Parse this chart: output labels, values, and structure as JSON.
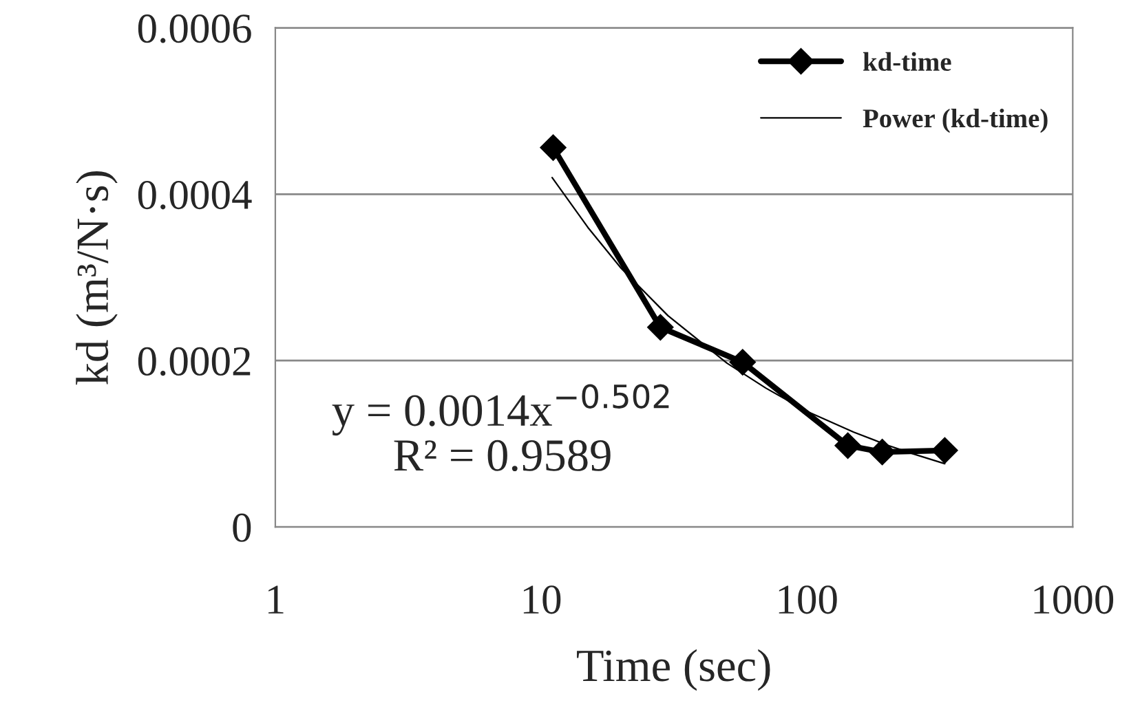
{
  "chart_data": {
    "type": "line",
    "xlabel": "Time (sec)",
    "ylabel": "kd (m³/N·s)",
    "log": "x",
    "xlim": [
      1,
      1000
    ],
    "xticks": [
      1,
      10,
      100,
      1000
    ],
    "ylim": [
      0,
      0.0006
    ],
    "yticks": [
      0,
      0.0002,
      0.0004,
      0.0006
    ],
    "grid": "y",
    "legend": "top right",
    "series": [
      {
        "name": "kd-time",
        "color": "#000000",
        "marker": "diamond",
        "line_style": "solid",
        "x": [
          11.1,
          28.1,
          57.3,
          142.5,
          192,
          330
        ],
        "values": [
          0.000456,
          0.00024,
          0.000198,
          9.78e-05,
          9e-05,
          9.2e-05
        ]
      },
      {
        "name": "Power (kd-time)",
        "color": "#000000",
        "marker": "none",
        "line_style": "solid",
        "x": [
          11,
          15,
          20,
          30,
          50,
          70,
          100,
          150,
          200,
          250,
          330
        ],
        "values": [
          0.00042,
          0.00036,
          0.000311,
          0.000254,
          0.000197,
          0.000167,
          0.000139,
          0.000114,
          9.85e-05,
          8.8e-05,
          7.6e-05
        ]
      }
    ],
    "annotations": [
      "y = 0.0014x$^{−0.502}$",
      "R² = 0.9589"
    ]
  }
}
